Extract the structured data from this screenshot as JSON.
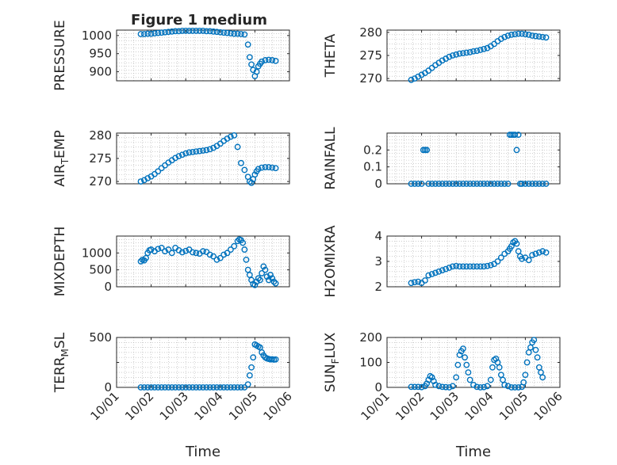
{
  "figure": {
    "title": "Figure 1 medium",
    "marker_color": "#0072BD",
    "axis_color": "#262626",
    "grid_color": "#b0b0b0"
  },
  "chart_data": [
    {
      "type": "scatter",
      "panel": "top-left",
      "ylabel": "PRESSURE",
      "ylim": [
        875,
        1015
      ],
      "yticks": [
        900,
        950,
        1000
      ],
      "ytick_labels": [
        "900",
        "950",
        "1000"
      ],
      "xlim": [
        0,
        5
      ],
      "xticks": [
        0,
        1,
        2,
        3,
        4,
        5
      ],
      "grid": true,
      "x": [
        0.7,
        0.8,
        0.9,
        1.0,
        1.1,
        1.2,
        1.3,
        1.4,
        1.5,
        1.6,
        1.7,
        1.8,
        1.9,
        2.0,
        2.1,
        2.2,
        2.3,
        2.4,
        2.5,
        2.6,
        2.7,
        2.8,
        2.9,
        3.0,
        3.1,
        3.2,
        3.3,
        3.4,
        3.5,
        3.6,
        3.7,
        3.8,
        3.85,
        3.9,
        3.95,
        4.0,
        4.05,
        4.1,
        4.15,
        4.2,
        4.3,
        4.4,
        4.5,
        4.6
      ],
      "y": [
        1004,
        1004,
        1005,
        1005,
        1006,
        1007,
        1008,
        1009,
        1010,
        1011,
        1012,
        1012,
        1013,
        1013,
        1013,
        1013,
        1013,
        1013,
        1013,
        1012,
        1012,
        1011,
        1010,
        1009,
        1008,
        1007,
        1006,
        1005,
        1005,
        1004,
        1003,
        975,
        940,
        920,
        905,
        888,
        900,
        915,
        922,
        928,
        932,
        933,
        932,
        930
      ]
    },
    {
      "type": "scatter",
      "panel": "top-right",
      "ylabel": "THETA",
      "ylim": [
        269.5,
        280.5
      ],
      "yticks": [
        270,
        275,
        280
      ],
      "ytick_labels": [
        "270",
        "275",
        "280"
      ],
      "xlim": [
        0,
        5
      ],
      "xticks": [
        0,
        1,
        2,
        3,
        4,
        5
      ],
      "grid": true,
      "x": [
        0.7,
        0.8,
        0.9,
        1.0,
        1.1,
        1.2,
        1.3,
        1.4,
        1.5,
        1.6,
        1.7,
        1.8,
        1.9,
        2.0,
        2.1,
        2.2,
        2.3,
        2.4,
        2.5,
        2.6,
        2.7,
        2.8,
        2.9,
        3.0,
        3.1,
        3.2,
        3.3,
        3.4,
        3.5,
        3.6,
        3.7,
        3.8,
        3.9,
        4.0,
        4.1,
        4.2,
        4.3,
        4.4,
        4.5,
        4.6
      ],
      "y": [
        269.7,
        270.0,
        270.4,
        270.8,
        271.2,
        271.7,
        272.3,
        272.9,
        273.4,
        273.9,
        274.3,
        274.7,
        275.0,
        275.2,
        275.4,
        275.5,
        275.6,
        275.7,
        275.9,
        276.0,
        276.2,
        276.4,
        276.6,
        277.0,
        277.5,
        278.1,
        278.6,
        279.0,
        279.3,
        279.5,
        279.6,
        279.7,
        279.7,
        279.6,
        279.5,
        279.3,
        279.2,
        279.1,
        279.0,
        278.9
      ]
    },
    {
      "type": "scatter",
      "panel": "middle-upper-left",
      "ylabel": "AIR_TEMP",
      "ylabel_main": "AIR",
      "ylabel_sub": "T",
      "ylabel_rest": "EMP",
      "ylim": [
        269.5,
        280.5
      ],
      "yticks": [
        270,
        275,
        280
      ],
      "ytick_labels": [
        "270",
        "275",
        "280"
      ],
      "xlim": [
        0,
        5
      ],
      "xticks": [
        0,
        1,
        2,
        3,
        4,
        5
      ],
      "grid": true,
      "x": [
        0.7,
        0.8,
        0.9,
        1.0,
        1.1,
        1.2,
        1.3,
        1.4,
        1.5,
        1.6,
        1.7,
        1.8,
        1.9,
        2.0,
        2.1,
        2.2,
        2.3,
        2.4,
        2.5,
        2.6,
        2.7,
        2.8,
        2.9,
        3.0,
        3.1,
        3.2,
        3.3,
        3.4,
        3.5,
        3.6,
        3.7,
        3.8,
        3.85,
        3.9,
        3.95,
        4.0,
        4.05,
        4.1,
        4.2,
        4.3,
        4.4,
        4.5,
        4.6
      ],
      "y": [
        270.0,
        270.3,
        270.7,
        271.1,
        271.6,
        272.2,
        272.9,
        273.5,
        274.1,
        274.6,
        275.1,
        275.5,
        275.8,
        276.1,
        276.3,
        276.4,
        276.5,
        276.6,
        276.7,
        276.8,
        277.0,
        277.3,
        277.7,
        278.2,
        278.8,
        279.3,
        279.7,
        280.0,
        277.5,
        274.0,
        272.5,
        271.0,
        270.0,
        269.7,
        270.5,
        271.5,
        272.2,
        272.7,
        273.0,
        273.1,
        273.1,
        273.0,
        272.9
      ]
    },
    {
      "type": "scatter",
      "panel": "middle-upper-right",
      "ylabel": "RAINFALL",
      "ylim": [
        0,
        0.3
      ],
      "yticks": [
        0,
        0.1,
        0.2
      ],
      "ytick_labels": [
        "0",
        "0.1",
        "0.2"
      ],
      "xlim": [
        0,
        5
      ],
      "xticks": [
        0,
        1,
        2,
        3,
        4,
        5
      ],
      "grid": true,
      "x": [
        0.7,
        0.8,
        0.9,
        1.0,
        1.05,
        1.1,
        1.15,
        1.2,
        1.3,
        1.4,
        1.5,
        1.6,
        1.7,
        1.8,
        1.9,
        2.0,
        2.1,
        2.2,
        2.3,
        2.4,
        2.5,
        2.6,
        2.7,
        2.8,
        2.9,
        3.0,
        3.1,
        3.2,
        3.3,
        3.4,
        3.5,
        3.55,
        3.6,
        3.65,
        3.7,
        3.75,
        3.8,
        3.85,
        3.9,
        4.0,
        4.1,
        4.2,
        4.3,
        4.4,
        4.5,
        4.6
      ],
      "y": [
        0,
        0,
        0,
        0,
        0.2,
        0.2,
        0.2,
        0,
        0,
        0,
        0,
        0,
        0,
        0,
        0,
        0,
        0,
        0,
        0,
        0,
        0,
        0,
        0,
        0,
        0,
        0,
        0,
        0,
        0,
        0,
        0,
        0.29,
        0.29,
        0.29,
        0.29,
        0.2,
        0.29,
        0,
        0,
        0,
        0,
        0,
        0,
        0,
        0,
        0
      ]
    },
    {
      "type": "scatter",
      "panel": "middle-lower-left",
      "ylabel": "MIXDEPTH",
      "ylim": [
        0,
        1500
      ],
      "yticks": [
        0,
        500,
        1000
      ],
      "ytick_labels": [
        "0",
        "500",
        "1000"
      ],
      "xlim": [
        0,
        5
      ],
      "xticks": [
        0,
        1,
        2,
        3,
        4,
        5
      ],
      "grid": true,
      "x": [
        0.7,
        0.75,
        0.8,
        0.85,
        0.9,
        0.95,
        1.0,
        1.1,
        1.2,
        1.3,
        1.4,
        1.5,
        1.6,
        1.7,
        1.8,
        1.9,
        2.0,
        2.1,
        2.2,
        2.3,
        2.4,
        2.5,
        2.6,
        2.7,
        2.8,
        2.9,
        3.0,
        3.1,
        3.2,
        3.3,
        3.4,
        3.5,
        3.55,
        3.6,
        3.65,
        3.7,
        3.75,
        3.8,
        3.85,
        3.9,
        3.95,
        4.0,
        4.05,
        4.1,
        4.15,
        4.2,
        4.25,
        4.3,
        4.35,
        4.4,
        4.45,
        4.5,
        4.55,
        4.6
      ],
      "y": [
        750,
        800,
        780,
        850,
        1000,
        1080,
        1100,
        1050,
        1120,
        1150,
        1050,
        1100,
        1000,
        1150,
        1080,
        1020,
        1060,
        1100,
        1020,
        1000,
        980,
        1050,
        1030,
        950,
        900,
        800,
        850,
        950,
        1000,
        1100,
        1200,
        1350,
        1400,
        1380,
        1300,
        1100,
        800,
        500,
        350,
        200,
        80,
        50,
        150,
        250,
        200,
        400,
        600,
        500,
        300,
        200,
        350,
        250,
        150,
        100
      ]
    },
    {
      "type": "scatter",
      "panel": "middle-lower-right",
      "ylabel": "H2OMIXRA",
      "ylim": [
        2,
        4
      ],
      "yticks": [
        2,
        3,
        4
      ],
      "ytick_labels": [
        "2",
        "3",
        "4"
      ],
      "xlim": [
        0,
        5
      ],
      "xticks": [
        0,
        1,
        2,
        3,
        4,
        5
      ],
      "grid": true,
      "x": [
        0.7,
        0.8,
        0.9,
        1.0,
        1.1,
        1.2,
        1.3,
        1.4,
        1.5,
        1.6,
        1.7,
        1.8,
        1.9,
        2.0,
        2.1,
        2.2,
        2.3,
        2.4,
        2.5,
        2.6,
        2.7,
        2.8,
        2.9,
        3.0,
        3.1,
        3.2,
        3.3,
        3.4,
        3.5,
        3.55,
        3.6,
        3.65,
        3.7,
        3.75,
        3.8,
        3.85,
        3.9,
        4.0,
        4.1,
        4.2,
        4.3,
        4.4,
        4.5,
        4.6
      ],
      "y": [
        2.15,
        2.18,
        2.2,
        2.15,
        2.25,
        2.45,
        2.5,
        2.55,
        2.6,
        2.65,
        2.7,
        2.75,
        2.8,
        2.82,
        2.8,
        2.8,
        2.8,
        2.8,
        2.8,
        2.8,
        2.8,
        2.8,
        2.82,
        2.85,
        2.9,
        3.0,
        3.15,
        3.3,
        3.4,
        3.5,
        3.6,
        3.75,
        3.8,
        3.7,
        3.4,
        3.2,
        3.1,
        3.15,
        3.05,
        3.25,
        3.3,
        3.35,
        3.4,
        3.35
      ]
    },
    {
      "type": "scatter",
      "panel": "bottom-left",
      "ylabel": "TERR_MSL",
      "ylabel_main": "TERR",
      "ylabel_sub": "M",
      "ylabel_rest": "SL",
      "ylim": [
        0,
        500
      ],
      "yticks": [
        0,
        250,
        500
      ],
      "ytick_labels": [
        "0",
        "",
        "500"
      ],
      "xlim": [
        0,
        5
      ],
      "xticks": [
        0,
        1,
        2,
        3,
        4,
        5
      ],
      "xtick_labels": [
        "10/01",
        "10/02",
        "10/03",
        "10/04",
        "10/05",
        "10/06"
      ],
      "xlabel": "Time",
      "grid": true,
      "x": [
        0.7,
        0.8,
        0.9,
        1.0,
        1.1,
        1.2,
        1.3,
        1.4,
        1.5,
        1.6,
        1.7,
        1.8,
        1.9,
        2.0,
        2.1,
        2.2,
        2.3,
        2.4,
        2.5,
        2.6,
        2.7,
        2.8,
        2.9,
        3.0,
        3.1,
        3.2,
        3.3,
        3.4,
        3.5,
        3.6,
        3.7,
        3.8,
        3.85,
        3.9,
        3.95,
        4.0,
        4.05,
        4.1,
        4.15,
        4.2,
        4.25,
        4.3,
        4.35,
        4.4,
        4.45,
        4.5,
        4.55,
        4.6
      ],
      "y": [
        0,
        0,
        0,
        0,
        0,
        0,
        0,
        0,
        0,
        0,
        0,
        0,
        0,
        0,
        0,
        0,
        0,
        0,
        0,
        0,
        0,
        0,
        0,
        0,
        0,
        0,
        0,
        0,
        0,
        0,
        0,
        30,
        120,
        200,
        300,
        430,
        420,
        410,
        400,
        350,
        320,
        300,
        290,
        285,
        280,
        282,
        278,
        280
      ]
    },
    {
      "type": "scatter",
      "panel": "bottom-right",
      "ylabel": "SUN_FLUX",
      "ylabel_main": "SUN",
      "ylabel_sub": "F",
      "ylabel_rest": "LUX",
      "ylim": [
        0,
        200
      ],
      "yticks": [
        0,
        100,
        200
      ],
      "ytick_labels": [
        "0",
        "100",
        "200"
      ],
      "xlim": [
        0,
        5
      ],
      "xticks": [
        0,
        1,
        2,
        3,
        4,
        5
      ],
      "xtick_labels": [
        "10/01",
        "10/02",
        "10/03",
        "10/04",
        "10/05",
        "10/06"
      ],
      "xlabel": "Time",
      "grid": true,
      "x": [
        0.7,
        0.8,
        0.9,
        1.0,
        1.1,
        1.15,
        1.2,
        1.25,
        1.3,
        1.35,
        1.4,
        1.5,
        1.6,
        1.7,
        1.8,
        1.9,
        2.0,
        2.05,
        2.1,
        2.15,
        2.2,
        2.25,
        2.3,
        2.35,
        2.4,
        2.5,
        2.6,
        2.7,
        2.8,
        2.9,
        3.0,
        3.05,
        3.1,
        3.15,
        3.2,
        3.25,
        3.3,
        3.35,
        3.4,
        3.5,
        3.6,
        3.7,
        3.8,
        3.9,
        3.95,
        4.0,
        4.05,
        4.1,
        4.15,
        4.2,
        4.25,
        4.3,
        4.35,
        4.4,
        4.45,
        4.5
      ],
      "y": [
        2,
        2,
        2,
        1,
        5,
        15,
        30,
        45,
        40,
        25,
        10,
        5,
        2,
        1,
        0,
        5,
        40,
        90,
        130,
        145,
        155,
        120,
        90,
        60,
        30,
        10,
        2,
        0,
        1,
        5,
        30,
        80,
        110,
        115,
        100,
        80,
        50,
        30,
        10,
        5,
        0,
        0,
        0,
        2,
        20,
        50,
        100,
        140,
        160,
        180,
        190,
        150,
        120,
        80,
        60,
        40
      ]
    }
  ]
}
